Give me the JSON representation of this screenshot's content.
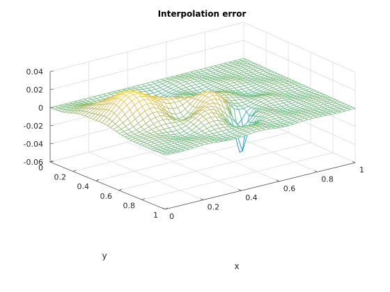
{
  "chart_data": {
    "type": "surface-mesh",
    "title": "Interpolation error",
    "xlabel": "x",
    "ylabel": "y",
    "zlabel": "",
    "xlim": [
      0,
      1
    ],
    "ylim": [
      0,
      1
    ],
    "zlim": [
      -0.06,
      0.04
    ],
    "xticks": [
      "0",
      "0.2",
      "0.4",
      "0.6",
      "0.8",
      "1"
    ],
    "yticks": [
      "0",
      "0.2",
      "0.4",
      "0.6",
      "0.8",
      "1"
    ],
    "zticks": [
      "-0.06",
      "-0.04",
      "-0.02",
      "0",
      "0.02",
      "0.04"
    ],
    "grid": true,
    "colormap": "parula",
    "colors": [
      "#352a87",
      "#0f5cdd",
      "#1481d6",
      "#06a4ca",
      "#2eb7a4",
      "#87bf77",
      "#d1bb59",
      "#fec832",
      "#f9fb0e"
    ],
    "mesh_resolution": 41,
    "surface_features": [
      {
        "description": "positive ridge",
        "x": 0.2,
        "y": 0.45,
        "z": 0.035
      },
      {
        "description": "positive bump",
        "x": 0.45,
        "y": 0.55,
        "z": 0.02
      },
      {
        "description": "negative dip",
        "x": 0.6,
        "y": 0.65,
        "z": -0.058
      },
      {
        "description": "trough",
        "x": 0.35,
        "y": 0.2,
        "z": -0.02
      }
    ]
  }
}
